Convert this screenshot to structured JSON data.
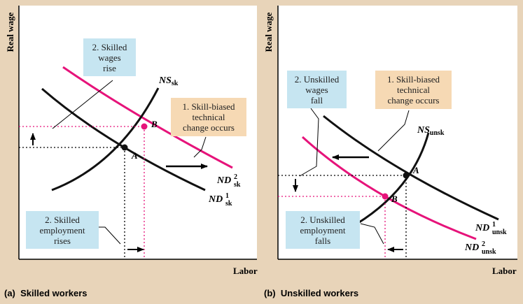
{
  "panel_a": {
    "caption_letter": "(a)",
    "caption_text": "Skilled workers",
    "y_axis": "Real wage",
    "x_axis": "Labor",
    "supply_curve": {
      "base": "NS",
      "sub": "sk"
    },
    "demand_old": {
      "base": "ND",
      "sup": "1",
      "sub": "sk"
    },
    "demand_new": {
      "base": "ND",
      "sup": "2",
      "sub": "sk"
    },
    "point_old": "A",
    "point_new": "B",
    "box_wages": {
      "line1": "2. Skilled",
      "line2": "wages",
      "line3": "rise"
    },
    "box_tech": {
      "line1": "1. Skill-biased",
      "line2": "technical",
      "line3": "change occurs"
    },
    "box_employment": {
      "line1": "2. Skilled",
      "line2": "employment",
      "line3": "rises"
    }
  },
  "panel_b": {
    "caption_letter": "(b)",
    "caption_text": "Unskilled workers",
    "y_axis": "Real wage",
    "x_axis": "Labor",
    "supply_curve": {
      "base": "NS",
      "sub": "unsk"
    },
    "demand_old": {
      "base": "ND",
      "sup": "1",
      "sub": "unsk"
    },
    "demand_new": {
      "base": "ND",
      "sup": "2",
      "sub": "unsk"
    },
    "point_old": "A",
    "point_new": "B",
    "box_wages": {
      "line1": "2. Unskilled",
      "line2": "wages",
      "line3": "fall"
    },
    "box_tech": {
      "line1": "1. Skill-biased",
      "line2": "technical",
      "line3": "change occurs"
    },
    "box_employment": {
      "line1": "2. Unskilled",
      "line2": "employment",
      "line3": "falls"
    }
  },
  "colors": {
    "background": "#e8d4b9",
    "shift_curve": "#e6137a",
    "curve": "#111111",
    "blue_box": "#c6e5f1",
    "tan_box": "#f6d9b4"
  }
}
